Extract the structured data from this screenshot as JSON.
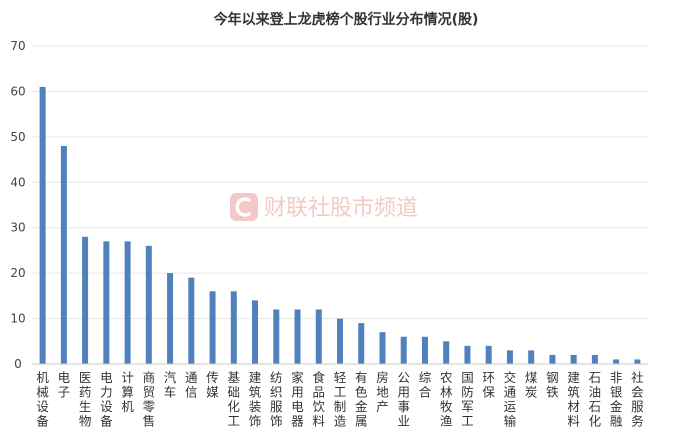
{
  "watermark": {
    "text": "财联社股市频道",
    "color": "#f3c9c6",
    "icon": "cls-logo-icon"
  },
  "colors": {
    "bar": "#4f81bd",
    "grid": "#e6e6e6",
    "axis": "#c8c8c8"
  },
  "chart_data": {
    "type": "bar",
    "title": "今年以来登上龙虎榜个股行业分布情况(股)",
    "xlabel": "",
    "ylabel": "",
    "ylim": [
      0,
      70
    ],
    "yticks": [
      0,
      10,
      20,
      30,
      40,
      50,
      60,
      70
    ],
    "grid": true,
    "legend": "none",
    "categories": [
      "机械设备",
      "电子",
      "医药生物",
      "电力设备",
      "计算机",
      "商贸零售",
      "汽车",
      "通信",
      "传媒",
      "基础化工",
      "建筑装饰",
      "纺织服饰",
      "家用电器",
      "食品饮料",
      "轻工制造",
      "有色金属",
      "房地产",
      "公用事业",
      "综合",
      "农林牧渔",
      "国防军工",
      "环保",
      "交通运输",
      "煤炭",
      "钢铁",
      "建筑材料",
      "石油石化",
      "非银金融",
      "社会服务"
    ],
    "values": [
      61,
      48,
      28,
      27,
      27,
      26,
      20,
      19,
      16,
      16,
      14,
      12,
      12,
      12,
      10,
      9,
      7,
      6,
      6,
      5,
      4,
      4,
      3,
      3,
      2,
      2,
      2,
      1,
      1
    ]
  }
}
